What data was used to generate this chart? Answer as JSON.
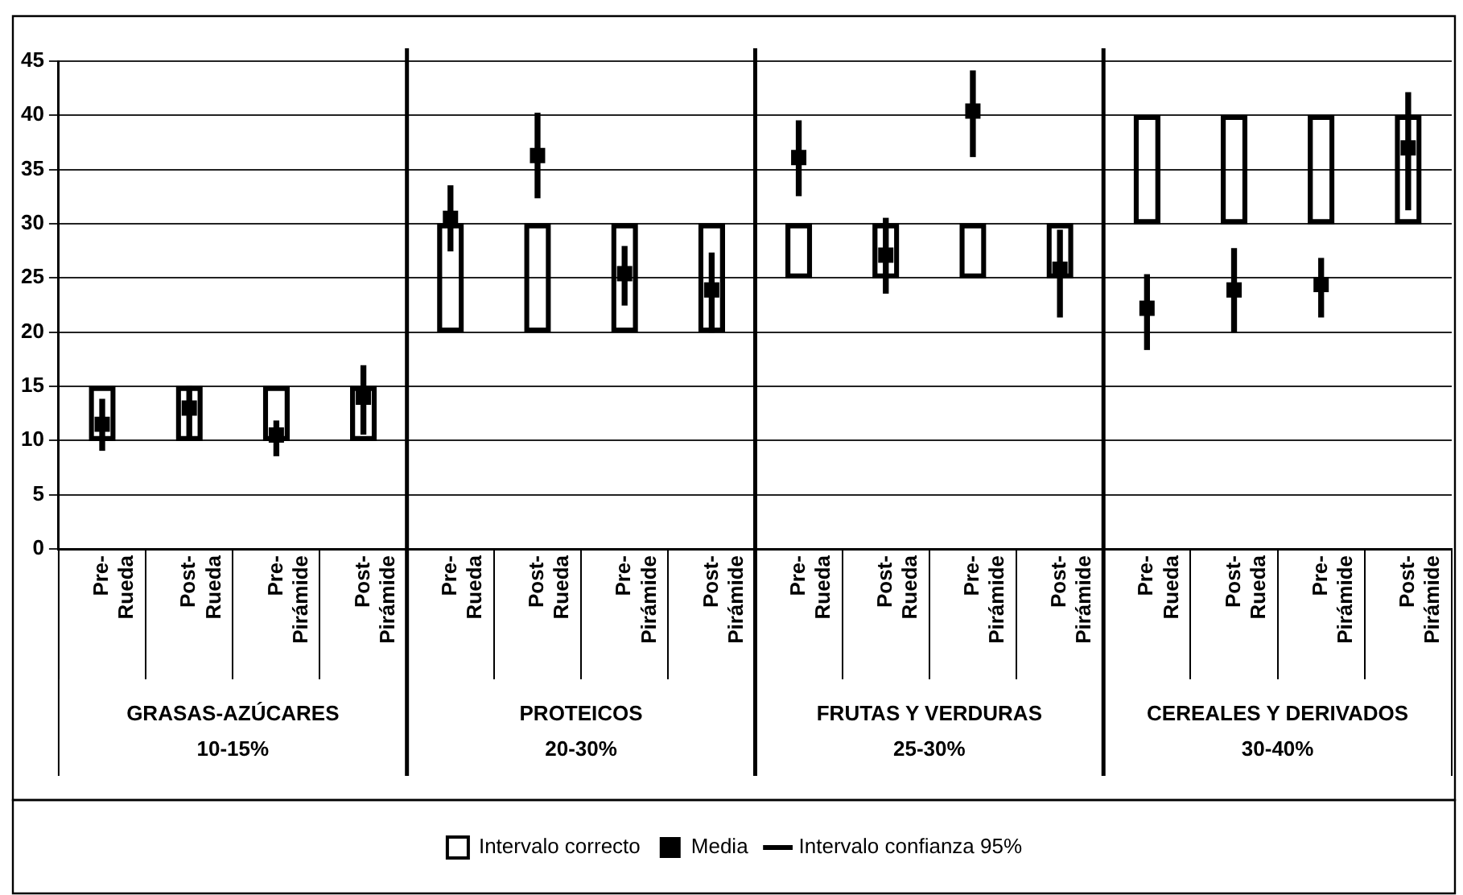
{
  "chart_data": {
    "type": "bar",
    "categories": [
      "Pre-Rueda",
      "Post-Rueda",
      "Pre-Pirámide",
      "Post-Pirámide",
      "Pre-Rueda",
      "Post-Rueda",
      "Pre-Pirámide",
      "Post-Pirámide",
      "Pre-Rueda",
      "Post-Rueda",
      "Pre-Pirámide",
      "Post-Pirámide",
      "Pre-Rueda",
      "Post-Rueda",
      "Pre-Pirámide",
      "Post-Pirámide"
    ],
    "series": [
      {
        "name": "Intervalo correcto",
        "color": "#000000",
        "base": [
          10,
          10,
          10,
          10,
          20,
          20,
          20,
          20,
          25,
          25,
          25,
          25,
          30,
          30,
          30,
          30
        ],
        "values": [
          5,
          5,
          5,
          5,
          10,
          10,
          10,
          10,
          5,
          5,
          5,
          5,
          10,
          10,
          10,
          10
        ]
      },
      {
        "name": "Media",
        "type": "scatter",
        "color": "#000000",
        "values": [
          11.5,
          13,
          10.5,
          14,
          30.5,
          36.3,
          25.4,
          23.9,
          36.1,
          27.1,
          40.4,
          25.8,
          22.2,
          23.9,
          24.4,
          37
        ]
      },
      {
        "name": "Intervalo confianza 95%",
        "color": "#000000",
        "base": [
          9.1,
          10.3,
          8.6,
          10.6,
          27.5,
          32.4,
          22.5,
          20,
          32.6,
          23.6,
          36.2,
          21.4,
          18.4,
          20,
          21.4,
          31.3
        ],
        "values": [
          4.7,
          4.7,
          3.2,
          6.3,
          6,
          7.8,
          5.4,
          7.3,
          6.9,
          6.9,
          7.9,
          8,
          6.9,
          7.7,
          5.4,
          10.8
        ]
      }
    ],
    "ylim": [
      0,
      45
    ],
    "yticks": [
      0,
      5,
      10,
      15,
      20,
      25,
      30,
      35,
      40,
      45
    ],
    "grid": "y",
    "legend": "bottom",
    "marker": "square",
    "annotations": [
      "GRASAS-AZÚCARES\n10-15%",
      "PROTEICOS\n20-30%",
      "FRUTAS Y VERDURAS\n25-30%",
      "CEREALES Y DERIVADOS\n30-40%"
    ]
  }
}
